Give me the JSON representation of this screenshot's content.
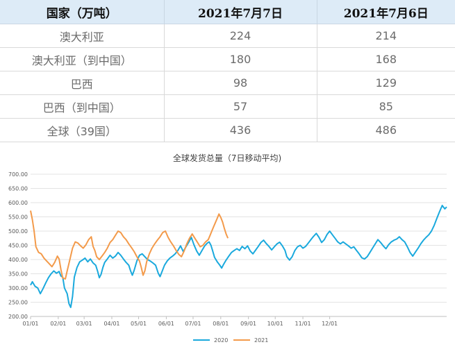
{
  "table": {
    "headers": [
      "国家（万吨）",
      "2021年7月7日",
      "2021年7月6日"
    ],
    "rows": [
      [
        "澳大利亚",
        "224",
        "214"
      ],
      [
        "澳大利亚（到中国）",
        "180",
        "168"
      ],
      [
        "巴西",
        "98",
        "129"
      ],
      [
        "巴西（到中国）",
        "57",
        "85"
      ],
      [
        "全球（39国）",
        "436",
        "486"
      ]
    ]
  },
  "chart_data": {
    "type": "line",
    "title": "全球发货总量（7日移动平均)",
    "ylim": [
      200,
      700
    ],
    "yticks": [
      "200.00",
      "250.00",
      "300.00",
      "350.00",
      "400.00",
      "450.00",
      "500.00",
      "550.00",
      "600.00",
      "650.00",
      "700.00"
    ],
    "xticks": [
      "01/01",
      "02/01",
      "03/01",
      "04/01",
      "05/01",
      "06/01",
      "07/01",
      "08/01",
      "09/01",
      "10/01",
      "11/01",
      "12/01"
    ],
    "grid": true,
    "legend_position": "bottom",
    "series": [
      {
        "name": "2020",
        "color": "#1aa9dd",
        "points": [
          [
            1,
            310
          ],
          [
            3,
            322
          ],
          [
            6,
            306
          ],
          [
            9,
            300
          ],
          [
            12,
            280
          ],
          [
            15,
            298
          ],
          [
            18,
            318
          ],
          [
            21,
            336
          ],
          [
            24,
            350
          ],
          [
            27,
            360
          ],
          [
            30,
            352
          ],
          [
            33,
            358
          ],
          [
            35,
            342
          ],
          [
            37,
            338
          ],
          [
            39,
            300
          ],
          [
            42,
            280
          ],
          [
            44,
            245
          ],
          [
            46,
            232
          ],
          [
            48,
            270
          ],
          [
            50,
            338
          ],
          [
            53,
            372
          ],
          [
            56,
            392
          ],
          [
            59,
            398
          ],
          [
            62,
            405
          ],
          [
            65,
            392
          ],
          [
            68,
            402
          ],
          [
            71,
            388
          ],
          [
            74,
            380
          ],
          [
            76,
            360
          ],
          [
            78,
            336
          ],
          [
            80,
            348
          ],
          [
            82,
            372
          ],
          [
            84,
            390
          ],
          [
            87,
            402
          ],
          [
            90,
            415
          ],
          [
            93,
            405
          ],
          [
            96,
            412
          ],
          [
            99,
            425
          ],
          [
            102,
            415
          ],
          [
            105,
            402
          ],
          [
            108,
            390
          ],
          [
            111,
            380
          ],
          [
            113,
            360
          ],
          [
            115,
            345
          ],
          [
            117,
            362
          ],
          [
            120,
            395
          ],
          [
            123,
            415
          ],
          [
            126,
            420
          ],
          [
            129,
            410
          ],
          [
            132,
            400
          ],
          [
            135,
            395
          ],
          [
            138,
            388
          ],
          [
            141,
            380
          ],
          [
            144,
            352
          ],
          [
            146,
            340
          ],
          [
            148,
            356
          ],
          [
            151,
            380
          ],
          [
            154,
            395
          ],
          [
            157,
            405
          ],
          [
            160,
            412
          ],
          [
            163,
            420
          ],
          [
            166,
            432
          ],
          [
            169,
            448
          ],
          [
            172,
            428
          ],
          [
            175,
            445
          ],
          [
            178,
            460
          ],
          [
            181,
            478
          ],
          [
            184,
            452
          ],
          [
            187,
            430
          ],
          [
            190,
            415
          ],
          [
            193,
            432
          ],
          [
            196,
            448
          ],
          [
            199,
            458
          ],
          [
            201,
            462
          ],
          [
            203,
            450
          ],
          [
            205,
            430
          ],
          [
            207,
            408
          ],
          [
            210,
            392
          ],
          [
            213,
            380
          ],
          [
            215,
            370
          ],
          [
            217,
            382
          ],
          [
            220,
            398
          ],
          [
            223,
            412
          ],
          [
            226,
            425
          ],
          [
            229,
            432
          ],
          [
            232,
            438
          ],
          [
            235,
            432
          ],
          [
            238,
            446
          ],
          [
            241,
            438
          ],
          [
            244,
            448
          ],
          [
            247,
            430
          ],
          [
            250,
            420
          ],
          [
            253,
            433
          ],
          [
            256,
            446
          ],
          [
            259,
            460
          ],
          [
            262,
            468
          ],
          [
            265,
            456
          ],
          [
            268,
            446
          ],
          [
            271,
            434
          ],
          [
            274,
            445
          ],
          [
            277,
            455
          ],
          [
            280,
            461
          ],
          [
            283,
            448
          ],
          [
            286,
            432
          ],
          [
            288,
            410
          ],
          [
            291,
            398
          ],
          [
            294,
            410
          ],
          [
            297,
            432
          ],
          [
            300,
            445
          ],
          [
            303,
            450
          ],
          [
            306,
            440
          ],
          [
            309,
            446
          ],
          [
            312,
            458
          ],
          [
            315,
            470
          ],
          [
            318,
            482
          ],
          [
            321,
            492
          ],
          [
            324,
            478
          ],
          [
            327,
            460
          ],
          [
            330,
            470
          ],
          [
            333,
            488
          ],
          [
            336,
            500
          ],
          [
            339,
            487
          ],
          [
            342,
            475
          ],
          [
            345,
            462
          ],
          [
            348,
            455
          ],
          [
            351,
            462
          ],
          [
            354,
            455
          ],
          [
            357,
            448
          ],
          [
            360,
            440
          ],
          [
            363,
            445
          ],
          [
            366,
            432
          ],
          [
            369,
            420
          ],
          [
            372,
            406
          ],
          [
            375,
            402
          ],
          [
            378,
            410
          ],
          [
            381,
            425
          ],
          [
            384,
            440
          ],
          [
            387,
            455
          ],
          [
            390,
            470
          ],
          [
            393,
            460
          ],
          [
            396,
            448
          ],
          [
            399,
            438
          ],
          [
            402,
            452
          ],
          [
            405,
            462
          ],
          [
            408,
            468
          ],
          [
            411,
            472
          ],
          [
            414,
            480
          ],
          [
            417,
            470
          ],
          [
            420,
            462
          ],
          [
            423,
            445
          ],
          [
            426,
            425
          ],
          [
            429,
            412
          ],
          [
            432,
            426
          ],
          [
            435,
            440
          ],
          [
            438,
            455
          ],
          [
            441,
            468
          ],
          [
            444,
            478
          ],
          [
            447,
            487
          ],
          [
            450,
            500
          ],
          [
            453,
            520
          ],
          [
            456,
            545
          ],
          [
            459,
            568
          ],
          [
            462,
            590
          ],
          [
            465,
            578
          ],
          [
            467,
            585
          ]
        ]
      },
      {
        "name": "2021",
        "color": "#f39a4a",
        "points": [
          [
            1,
            572
          ],
          [
            3,
            540
          ],
          [
            5,
            500
          ],
          [
            7,
            445
          ],
          [
            10,
            425
          ],
          [
            13,
            420
          ],
          [
            16,
            405
          ],
          [
            19,
            395
          ],
          [
            22,
            385
          ],
          [
            25,
            375
          ],
          [
            28,
            390
          ],
          [
            31,
            412
          ],
          [
            33,
            402
          ],
          [
            35,
            365
          ],
          [
            37,
            335
          ],
          [
            40,
            332
          ],
          [
            42,
            360
          ],
          [
            45,
            400
          ],
          [
            48,
            440
          ],
          [
            51,
            462
          ],
          [
            54,
            458
          ],
          [
            57,
            448
          ],
          [
            60,
            440
          ],
          [
            63,
            452
          ],
          [
            66,
            470
          ],
          [
            69,
            480
          ],
          [
            71,
            446
          ],
          [
            73,
            432
          ],
          [
            75,
            410
          ],
          [
            78,
            400
          ],
          [
            81,
            412
          ],
          [
            84,
            425
          ],
          [
            87,
            440
          ],
          [
            90,
            460
          ],
          [
            93,
            470
          ],
          [
            96,
            485
          ],
          [
            99,
            500
          ],
          [
            102,
            495
          ],
          [
            105,
            480
          ],
          [
            108,
            470
          ],
          [
            111,
            455
          ],
          [
            114,
            442
          ],
          [
            117,
            428
          ],
          [
            120,
            410
          ],
          [
            123,
            395
          ],
          [
            125,
            372
          ],
          [
            127,
            345
          ],
          [
            129,
            360
          ],
          [
            131,
            392
          ],
          [
            134,
            420
          ],
          [
            137,
            440
          ],
          [
            140,
            455
          ],
          [
            143,
            468
          ],
          [
            146,
            480
          ],
          [
            149,
            495
          ],
          [
            152,
            500
          ],
          [
            155,
            478
          ],
          [
            158,
            462
          ],
          [
            161,
            448
          ],
          [
            164,
            432
          ],
          [
            167,
            418
          ],
          [
            170,
            410
          ],
          [
            173,
            430
          ],
          [
            176,
            455
          ],
          [
            179,
            475
          ],
          [
            182,
            490
          ],
          [
            185,
            475
          ],
          [
            188,
            460
          ],
          [
            191,
            445
          ],
          [
            194,
            450
          ],
          [
            197,
            462
          ],
          [
            200,
            470
          ],
          [
            202,
            485
          ],
          [
            204,
            500
          ],
          [
            206,
            515
          ],
          [
            208,
            530
          ],
          [
            210,
            545
          ],
          [
            212,
            560
          ],
          [
            214,
            548
          ],
          [
            216,
            532
          ],
          [
            218,
            510
          ],
          [
            220,
            490
          ],
          [
            222,
            475
          ]
        ]
      }
    ]
  }
}
